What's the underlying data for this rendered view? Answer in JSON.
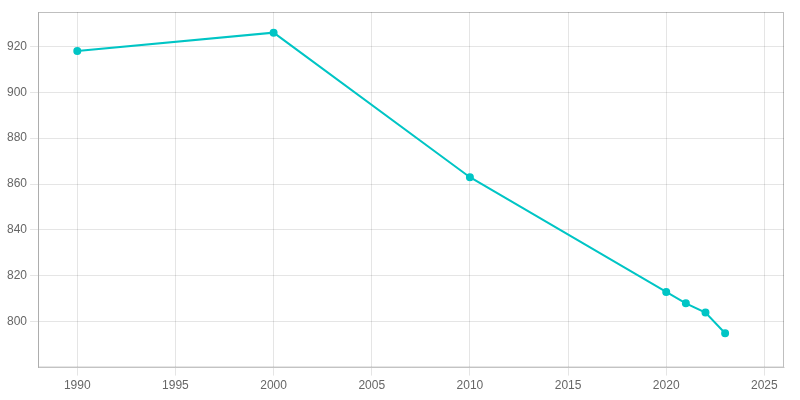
{
  "chart_data": {
    "type": "line",
    "x": [
      1990,
      2000,
      2010,
      2020,
      2021,
      2022,
      2023
    ],
    "values": [
      918,
      926,
      863,
      813,
      808,
      804,
      795
    ],
    "color": "#00C5C5",
    "marker": "circle",
    "xlim": [
      1988,
      2026
    ],
    "ylim": [
      780,
      935
    ],
    "xticks": [
      1990,
      1995,
      2000,
      2005,
      2010,
      2015,
      2020,
      2025
    ],
    "yticks": [
      800,
      820,
      840,
      860,
      880,
      900,
      920
    ],
    "grid": true
  }
}
